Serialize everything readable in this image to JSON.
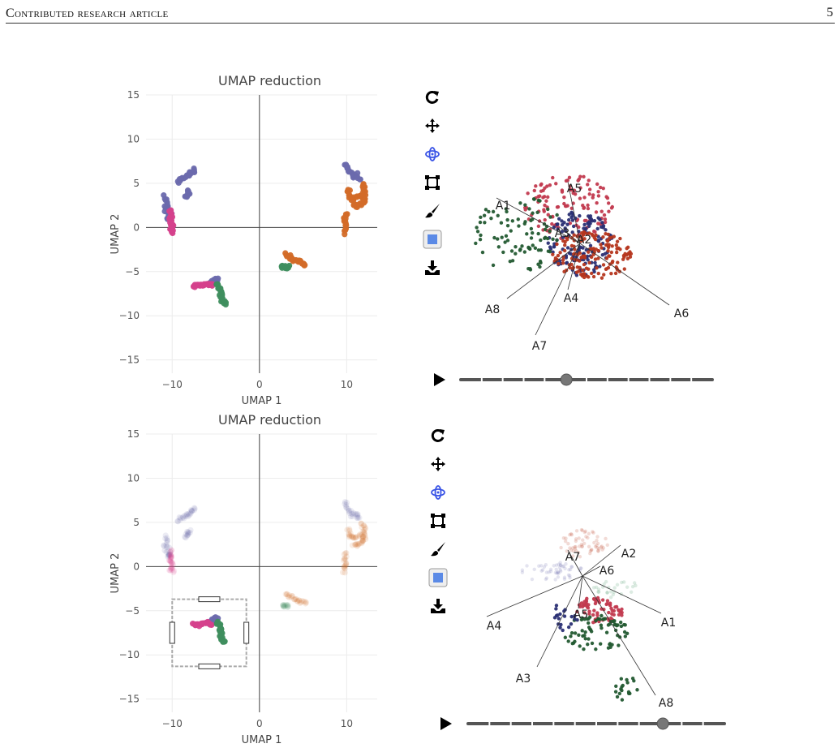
{
  "header": {
    "title": "Contributed research article",
    "page_number": "5"
  },
  "colors": {
    "purple": "#6b6aad",
    "pink": "#d5418c",
    "teal": "#3f8e5e",
    "orange": "#d36b28",
    "crimson": "#c23a4f",
    "navy": "#2a2f74",
    "darkgreen": "#235a31",
    "rust": "#b5361e",
    "light_blue": "#8fa9d8"
  },
  "chart_data": [
    {
      "type": "scatter",
      "title": "UMAP reduction",
      "xlabel": "UMAP 1",
      "ylabel": "UMAP 2",
      "xlim": [
        -13,
        13.5
      ],
      "ylim": [
        -16.5,
        15
      ],
      "xticks": [
        -10,
        0,
        10
      ],
      "yticks": [
        15,
        10,
        5,
        0,
        -5,
        -10,
        -15
      ],
      "tick_labels_x": [
        "−10",
        "0",
        "10"
      ],
      "tick_labels_y": [
        "15",
        "10",
        "5",
        "0",
        "−5",
        "−10",
        "−15"
      ],
      "grid": true,
      "selection_box": null,
      "faded_outside_selection": false
    },
    {
      "type": "scatter",
      "title": "UMAP reduction",
      "xlabel": "UMAP 1",
      "ylabel": "UMAP 2",
      "xlim": [
        -13,
        13.5
      ],
      "ylim": [
        -16.5,
        15
      ],
      "xticks": [
        -10,
        0,
        10
      ],
      "yticks": [
        15,
        10,
        5,
        0,
        -5,
        -10,
        -15
      ],
      "tick_labels_x": [
        "−10",
        "0",
        "10"
      ],
      "tick_labels_y": [
        "15",
        "10",
        "5",
        "0",
        "−5",
        "−10",
        "−15"
      ],
      "grid": true,
      "selection_box": {
        "x": [
          -10,
          -1.5
        ],
        "y": [
          -11.3,
          -3.7
        ]
      },
      "faded_outside_selection": true
    }
  ],
  "clusters": [
    {
      "color": "purple",
      "path": [
        [
          -10.8,
          3.5
        ],
        [
          -10.6,
          2.5
        ],
        [
          -10.2,
          1.5
        ],
        [
          -10.5,
          1.0
        ],
        [
          -10.9,
          2.8
        ]
      ]
    },
    {
      "color": "purple",
      "path": [
        [
          -9.4,
          5.2
        ],
        [
          -8.8,
          5.6
        ],
        [
          -8.2,
          5.9
        ],
        [
          -7.8,
          6.2
        ],
        [
          -7.3,
          6.6
        ]
      ]
    },
    {
      "color": "purple",
      "path": [
        [
          -8.5,
          3.4
        ],
        [
          -8.2,
          3.8
        ],
        [
          -8.0,
          4.1
        ]
      ]
    },
    {
      "color": "pink",
      "path": [
        [
          -10.2,
          1.8
        ],
        [
          -10.0,
          1.2
        ],
        [
          -10.3,
          0.7
        ],
        [
          -10.0,
          0.2
        ],
        [
          -10.2,
          -0.3
        ],
        [
          -9.9,
          -0.6
        ]
      ]
    },
    {
      "color": "purple",
      "path": [
        [
          9.8,
          7.2
        ],
        [
          10.2,
          6.6
        ],
        [
          10.6,
          5.8
        ],
        [
          11.2,
          6.0
        ],
        [
          11.5,
          5.2
        ]
      ]
    },
    {
      "color": "orange",
      "path": [
        [
          10.2,
          4.3
        ],
        [
          10.4,
          3.5
        ],
        [
          10.8,
          3.2
        ],
        [
          11.6,
          3.6
        ],
        [
          12.0,
          2.8
        ],
        [
          11.2,
          2.4
        ],
        [
          10.6,
          2.6
        ]
      ]
    },
    {
      "color": "orange",
      "path": [
        [
          11.8,
          5.0
        ],
        [
          12.0,
          4.2
        ],
        [
          12.0,
          3.6
        ],
        [
          12.0,
          2.8
        ]
      ]
    },
    {
      "color": "orange",
      "path": [
        [
          9.9,
          1.5
        ],
        [
          9.8,
          0.8
        ],
        [
          9.8,
          0.0
        ],
        [
          9.6,
          -0.8
        ]
      ]
    },
    {
      "color": "orange",
      "path": [
        [
          3.0,
          -3.0
        ],
        [
          3.6,
          -3.4
        ],
        [
          4.2,
          -3.8
        ],
        [
          4.8,
          -4.0
        ],
        [
          5.4,
          -4.2
        ]
      ]
    },
    {
      "color": "teal",
      "path": [
        [
          2.6,
          -4.4
        ],
        [
          3.0,
          -4.5
        ],
        [
          3.4,
          -4.4
        ]
      ]
    },
    {
      "color": "purple",
      "path": [
        [
          -5.6,
          -6.4
        ],
        [
          -5.2,
          -6.0
        ],
        [
          -4.8,
          -5.8
        ]
      ]
    },
    {
      "color": "pink",
      "path": [
        [
          -7.6,
          -6.6
        ],
        [
          -7.0,
          -6.6
        ],
        [
          -6.4,
          -6.5
        ],
        [
          -5.8,
          -6.4
        ],
        [
          -5.3,
          -6.5
        ]
      ]
    },
    {
      "color": "teal",
      "path": [
        [
          -4.8,
          -6.3
        ],
        [
          -4.6,
          -6.8
        ],
        [
          -4.5,
          -7.2
        ],
        [
          -4.4,
          -7.8
        ],
        [
          -4.3,
          -8.3
        ],
        [
          -3.8,
          -8.7
        ]
      ]
    }
  ],
  "ggobi": [
    {
      "dots": [
        {
          "color": "crimson",
          "cx": 700,
          "cy": 255,
          "rx": 55,
          "ry": 40,
          "n": 120
        },
        {
          "color": "navy",
          "cx": 715,
          "cy": 300,
          "rx": 40,
          "ry": 40,
          "n": 140
        },
        {
          "color": "rust",
          "cx": 730,
          "cy": 315,
          "rx": 50,
          "ry": 30,
          "n": 150
        },
        {
          "color": "darkgreen",
          "cx": 640,
          "cy": 290,
          "rx": 55,
          "ry": 50,
          "n": 90
        }
      ],
      "axes": [
        {
          "label": "A1",
          "x": 620,
          "y": 258,
          "ex": 612,
          "ey": 244
        },
        {
          "label": "A5",
          "x": 708,
          "y": 237,
          "ex": 700,
          "ey": 224
        },
        {
          "label": "A3",
          "x": 693,
          "y": 292,
          "ex": 690,
          "ey": 280
        },
        {
          "label": "A2",
          "x": 720,
          "y": 300,
          "ex": 710,
          "ey": 290
        },
        {
          "label": "A8",
          "x": 607,
          "y": 386,
          "ex": 625,
          "ey": 368
        },
        {
          "label": "A4",
          "x": 704,
          "y": 372,
          "ex": 700,
          "ey": 357
        },
        {
          "label": "A6",
          "x": 840,
          "y": 391,
          "ex": 825,
          "ey": 376
        },
        {
          "label": "A7",
          "x": 665,
          "y": 431,
          "ex": 660,
          "ey": 413
        }
      ],
      "origin": {
        "x": 715,
        "y": 300
      },
      "slider": {
        "y": 468,
        "x1": 568,
        "x2": 878,
        "value": 0.42
      }
    },
    {
      "dots": [
        {
          "color": "crimson",
          "cx": 740,
          "cy": 750,
          "rx": 30,
          "ry": 18,
          "n": 70
        },
        {
          "color": "darkgreen",
          "cx": 735,
          "cy": 780,
          "rx": 40,
          "ry": 22,
          "n": 70
        },
        {
          "color": "navy",
          "cx": 695,
          "cy": 760,
          "rx": 18,
          "ry": 18,
          "n": 20
        },
        {
          "color": "darkgreen",
          "cx": 780,
          "cy": 850,
          "rx": 22,
          "ry": 18,
          "n": 18
        },
        {
          "color": "rust",
          "cx": 720,
          "cy": 670,
          "rx": 30,
          "ry": 18,
          "n": 60,
          "faded": true
        },
        {
          "color": "purple",
          "cx": 680,
          "cy": 705,
          "rx": 40,
          "ry": 12,
          "n": 50,
          "faded": true
        },
        {
          "color": "teal",
          "cx": 760,
          "cy": 725,
          "rx": 30,
          "ry": 12,
          "n": 25,
          "faded": true
        }
      ],
      "axes": [
        {
          "label": "A7",
          "x": 706,
          "y": 691,
          "ex": 700,
          "ey": 678
        },
        {
          "label": "A2",
          "x": 775,
          "y": 687,
          "ex": 765,
          "ey": 672
        },
        {
          "label": "A6",
          "x": 748,
          "y": 708,
          "ex": 740,
          "ey": 698
        },
        {
          "label": "A4",
          "x": 609,
          "y": 776,
          "ex": 600,
          "ey": 760
        },
        {
          "label": "A5",
          "x": 716,
          "y": 762,
          "ex": 713,
          "ey": 750
        },
        {
          "label": "A1",
          "x": 824,
          "y": 772,
          "ex": 815,
          "ey": 756
        },
        {
          "label": "A3",
          "x": 645,
          "y": 841,
          "ex": 662,
          "ey": 822
        },
        {
          "label": "A8",
          "x": 821,
          "y": 871,
          "ex": 808,
          "ey": 857
        }
      ],
      "origin": {
        "x": 718,
        "y": 710
      },
      "slider": {
        "y": 892,
        "x1": 577,
        "x2": 893,
        "value": 0.76
      }
    }
  ],
  "toolbar": {
    "items": [
      "reset-icon",
      "pan-icon",
      "orbit-icon",
      "select-box-icon",
      "brush-icon",
      "color-picker-icon",
      "download-icon"
    ]
  }
}
